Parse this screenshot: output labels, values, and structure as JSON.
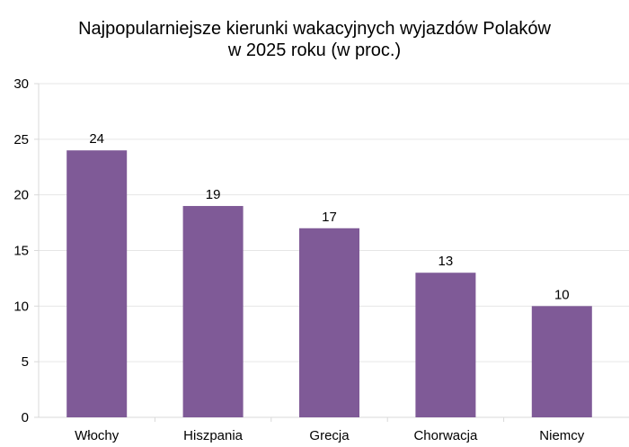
{
  "chart_data": {
    "type": "bar",
    "title_lines": [
      "Najpopularniejsze kierunki wakacyjnych wyjazdów Polaków",
      "w 2025 roku (w proc.)"
    ],
    "categories": [
      "Włochy",
      "Hiszpania",
      "Grecja",
      "Chorwacja",
      "Niemcy"
    ],
    "values": [
      24,
      19,
      17,
      13,
      10
    ],
    "data_labels": [
      "24",
      "19",
      "17",
      "13",
      "10"
    ],
    "ylim": [
      0,
      30
    ],
    "yticks": [
      "0",
      "5",
      "10",
      "15",
      "20",
      "25",
      "30"
    ],
    "grid": true,
    "legend": "none",
    "bar_color": "#7f5a97"
  }
}
